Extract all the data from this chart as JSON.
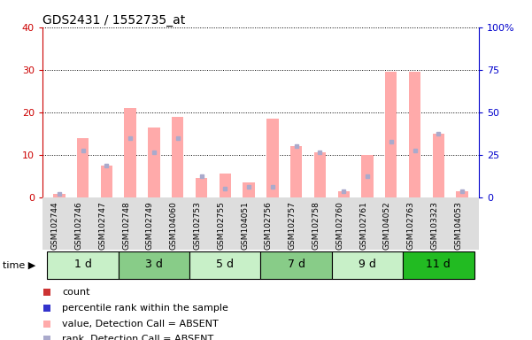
{
  "title": "GDS2431 / 1552735_at",
  "samples": [
    "GSM102744",
    "GSM102746",
    "GSM102747",
    "GSM102748",
    "GSM102749",
    "GSM104060",
    "GSM102753",
    "GSM102755",
    "GSM104051",
    "GSM102756",
    "GSM102757",
    "GSM102758",
    "GSM102760",
    "GSM102761",
    "GSM104052",
    "GSM102763",
    "GSM103323",
    "GSM104053"
  ],
  "groups": [
    {
      "label": "1 d",
      "indices": [
        0,
        1,
        2
      ],
      "color": "#c8f0c8"
    },
    {
      "label": "3 d",
      "indices": [
        3,
        4,
        5
      ],
      "color": "#88cc88"
    },
    {
      "label": "5 d",
      "indices": [
        6,
        7,
        8
      ],
      "color": "#c8f0c8"
    },
    {
      "label": "7 d",
      "indices": [
        9,
        10,
        11
      ],
      "color": "#88cc88"
    },
    {
      "label": "9 d",
      "indices": [
        12,
        13,
        14
      ],
      "color": "#c8f0c8"
    },
    {
      "label": "11 d",
      "indices": [
        15,
        16,
        17
      ],
      "color": "#22bb22"
    }
  ],
  "pink_bars": [
    0.8,
    14.0,
    7.5,
    21.0,
    16.5,
    19.0,
    4.5,
    5.5,
    3.5,
    18.5,
    12.0,
    10.5,
    1.5,
    10.0,
    29.5,
    29.5,
    15.0,
    1.5
  ],
  "blue_dots": [
    0.8,
    11.0,
    7.5,
    14.0,
    10.5,
    14.0,
    5.0,
    2.0,
    2.5,
    2.5,
    12.0,
    10.5,
    1.5,
    5.0,
    13.0,
    11.0,
    15.0,
    1.5
  ],
  "ylim_left": [
    0,
    40
  ],
  "ylim_right": [
    0,
    100
  ],
  "yticks_left": [
    0,
    10,
    20,
    30,
    40
  ],
  "yticks_right": [
    0,
    25,
    50,
    75,
    100
  ],
  "ytick_labels_right": [
    "0",
    "25",
    "50",
    "75",
    "100%"
  ],
  "bar_color_absent": "#ffaaaa",
  "dot_color_absent": "#aaaacc",
  "bg_color": "#ffffff",
  "axis_color_left": "#cc0000",
  "axis_color_right": "#0000cc",
  "legend_items": [
    {
      "color": "#cc3333",
      "marker": "s",
      "label": "count"
    },
    {
      "color": "#3333cc",
      "marker": "s",
      "label": "percentile rank within the sample"
    },
    {
      "color": "#ffaaaa",
      "marker": "s",
      "label": "value, Detection Call = ABSENT"
    },
    {
      "color": "#aaaacc",
      "marker": "s",
      "label": "rank, Detection Call = ABSENT"
    }
  ]
}
